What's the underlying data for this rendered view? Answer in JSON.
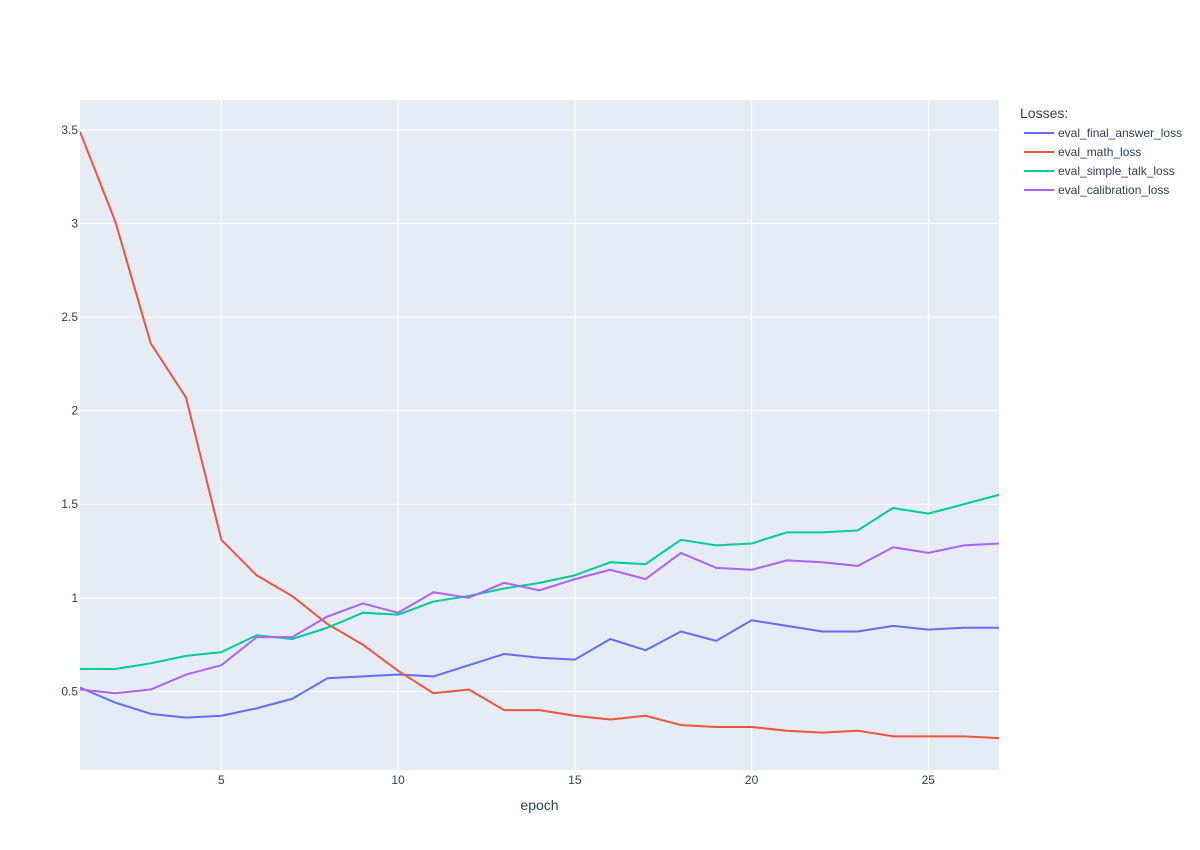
{
  "chart_data": {
    "type": "line",
    "xlabel": "epoch",
    "ylabel": "",
    "xlim": [
      1,
      27
    ],
    "ylim": [
      0.08,
      3.66
    ],
    "x_ticks": [
      5,
      10,
      15,
      20,
      25
    ],
    "y_ticks": [
      0.5,
      1,
      1.5,
      2,
      2.5,
      3,
      3.5
    ],
    "y_tick_labels": [
      "0.5",
      "1",
      "1.5",
      "2",
      "2.5",
      "3",
      "3.5"
    ],
    "grid": true,
    "legend_title": "Losses:",
    "legend_position": "right",
    "x": [
      1,
      2,
      3,
      4,
      5,
      6,
      7,
      8,
      9,
      10,
      11,
      12,
      13,
      14,
      15,
      16,
      17,
      18,
      19,
      20,
      21,
      22,
      23,
      24,
      25,
      26,
      27
    ],
    "series": [
      {
        "name": "eval_final_answer_loss",
        "color": "#636efa",
        "values": [
          0.52,
          0.44,
          0.38,
          0.36,
          0.37,
          0.41,
          0.46,
          0.57,
          0.58,
          0.59,
          0.58,
          0.64,
          0.7,
          0.68,
          0.67,
          0.78,
          0.72,
          0.82,
          0.77,
          0.88,
          0.85,
          0.82,
          0.82,
          0.85,
          0.83,
          0.84,
          0.84
        ]
      },
      {
        "name": "eval_math_loss",
        "color": "#ef553b",
        "values": [
          3.49,
          3.01,
          2.36,
          2.07,
          1.31,
          1.12,
          1.01,
          0.86,
          0.75,
          0.61,
          0.49,
          0.51,
          0.4,
          0.4,
          0.37,
          0.35,
          0.37,
          0.32,
          0.31,
          0.31,
          0.29,
          0.28,
          0.29,
          0.26,
          0.26,
          0.26,
          0.25
        ]
      },
      {
        "name": "eval_simple_talk_loss",
        "color": "#00cc96",
        "values": [
          0.62,
          0.62,
          0.65,
          0.69,
          0.71,
          0.8,
          0.78,
          0.84,
          0.92,
          0.91,
          0.98,
          1.01,
          1.05,
          1.08,
          1.12,
          1.19,
          1.18,
          1.31,
          1.28,
          1.29,
          1.35,
          1.35,
          1.36,
          1.48,
          1.45,
          1.5,
          1.55
        ]
      },
      {
        "name": "eval_calibration_loss",
        "color": "#ab63fa",
        "values": [
          0.51,
          0.49,
          0.51,
          0.59,
          0.64,
          0.79,
          0.79,
          0.9,
          0.97,
          0.92,
          1.03,
          1.0,
          1.08,
          1.04,
          1.1,
          1.15,
          1.1,
          1.24,
          1.16,
          1.15,
          1.2,
          1.19,
          1.17,
          1.27,
          1.24,
          1.28,
          1.29
        ]
      }
    ]
  }
}
